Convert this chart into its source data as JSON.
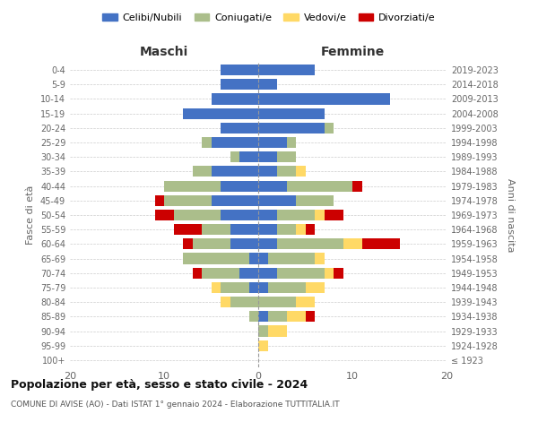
{
  "age_groups": [
    "100+",
    "95-99",
    "90-94",
    "85-89",
    "80-84",
    "75-79",
    "70-74",
    "65-69",
    "60-64",
    "55-59",
    "50-54",
    "45-49",
    "40-44",
    "35-39",
    "30-34",
    "25-29",
    "20-24",
    "15-19",
    "10-14",
    "5-9",
    "0-4"
  ],
  "birth_years": [
    "≤ 1923",
    "1924-1928",
    "1929-1933",
    "1934-1938",
    "1939-1943",
    "1944-1948",
    "1949-1953",
    "1954-1958",
    "1959-1963",
    "1964-1968",
    "1969-1973",
    "1974-1978",
    "1979-1983",
    "1984-1988",
    "1989-1993",
    "1994-1998",
    "1999-2003",
    "2004-2008",
    "2009-2013",
    "2014-2018",
    "2019-2023"
  ],
  "maschi": {
    "celibi": [
      0,
      0,
      0,
      0,
      0,
      1,
      2,
      1,
      3,
      3,
      4,
      5,
      4,
      5,
      2,
      5,
      4,
      8,
      5,
      4,
      4
    ],
    "coniugati": [
      0,
      0,
      0,
      1,
      3,
      3,
      4,
      7,
      4,
      3,
      5,
      5,
      6,
      2,
      1,
      1,
      0,
      0,
      0,
      0,
      0
    ],
    "vedovi": [
      0,
      0,
      0,
      0,
      1,
      1,
      0,
      0,
      0,
      0,
      0,
      0,
      0,
      0,
      0,
      0,
      0,
      0,
      0,
      0,
      0
    ],
    "divorziati": [
      0,
      0,
      0,
      0,
      0,
      0,
      1,
      0,
      1,
      3,
      2,
      1,
      0,
      0,
      0,
      0,
      0,
      0,
      0,
      0,
      0
    ]
  },
  "femmine": {
    "nubili": [
      0,
      0,
      0,
      1,
      0,
      1,
      2,
      1,
      2,
      2,
      2,
      4,
      3,
      2,
      2,
      3,
      7,
      7,
      14,
      2,
      6
    ],
    "coniugate": [
      0,
      0,
      1,
      2,
      4,
      4,
      5,
      5,
      7,
      2,
      4,
      4,
      7,
      2,
      2,
      1,
      1,
      0,
      0,
      0,
      0
    ],
    "vedove": [
      0,
      1,
      2,
      2,
      2,
      2,
      1,
      1,
      2,
      1,
      1,
      0,
      0,
      1,
      0,
      0,
      0,
      0,
      0,
      0,
      0
    ],
    "divorziate": [
      0,
      0,
      0,
      1,
      0,
      0,
      1,
      0,
      4,
      1,
      2,
      0,
      1,
      0,
      0,
      0,
      0,
      0,
      0,
      0,
      0
    ]
  },
  "colors": {
    "celibi": "#4472C4",
    "coniugati": "#ABBE8B",
    "vedovi": "#FFD966",
    "divorziati": "#CC0000"
  },
  "legend_labels": [
    "Celibi/Nubili",
    "Coniugati/e",
    "Vedovi/e",
    "Divorziati/e"
  ],
  "title_main": "Popolazione per età, sesso e stato civile - 2024",
  "title_sub": "COMUNE DI AVISE (AO) - Dati ISTAT 1° gennaio 2024 - Elaborazione TUTTITALIA.IT",
  "xlabel_left": "Maschi",
  "xlabel_right": "Femmine",
  "ylabel_left": "Fasce di età",
  "ylabel_right": "Anni di nascita",
  "xlim": 20,
  "bg_color": "#FFFFFF",
  "grid_color": "#CCCCCC",
  "bar_height": 0.75
}
